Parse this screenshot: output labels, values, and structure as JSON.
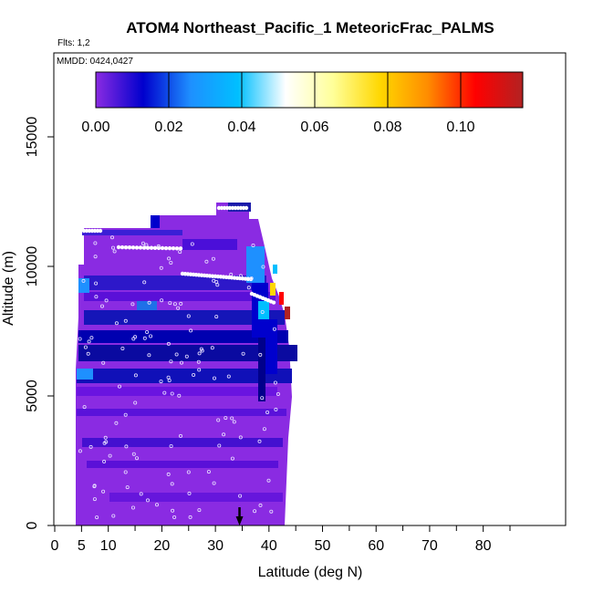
{
  "chart_data": {
    "type": "heatmap",
    "title": "ATOM4 Northeast_Pacific_1 MeteoricFrac_PALMS",
    "flights_note": "Flts: 1,2",
    "mmdd_note": "MMDD: 0424,0427",
    "xlabel": "Latitude (deg N)",
    "ylabel": "Altitude (m)",
    "xlim": [
      0,
      85
    ],
    "ylim": [
      0,
      18000
    ],
    "x_ticks": [
      0,
      5,
      10,
      20,
      30,
      40,
      50,
      60,
      70,
      80
    ],
    "x_tick_labels": [
      "0",
      "5",
      "10",
      "20",
      "30",
      "40",
      "50",
      "60",
      "70",
      "80"
    ],
    "y_ticks": [
      0,
      5000,
      10000,
      15000
    ],
    "y_tick_labels": [
      "0",
      "5000",
      "10000",
      "15000"
    ],
    "colorbar": {
      "range": [
        0,
        0.117
      ],
      "ticks": [
        0.0,
        0.02,
        0.04,
        0.06,
        0.08,
        0.1
      ],
      "tick_labels": [
        "0.00",
        "0.02",
        "0.04",
        "0.06",
        "0.08",
        "0.10"
      ],
      "colors": [
        "#8a2be2",
        "#0000cd",
        "#1e90ff",
        "#00bfff",
        "#ffffff",
        "#ffff99",
        "#ffd700",
        "#ff8c00",
        "#ff0000",
        "#b22222"
      ]
    },
    "arrow_latitude": 34.5,
    "grid": false,
    "legend": "top"
  }
}
